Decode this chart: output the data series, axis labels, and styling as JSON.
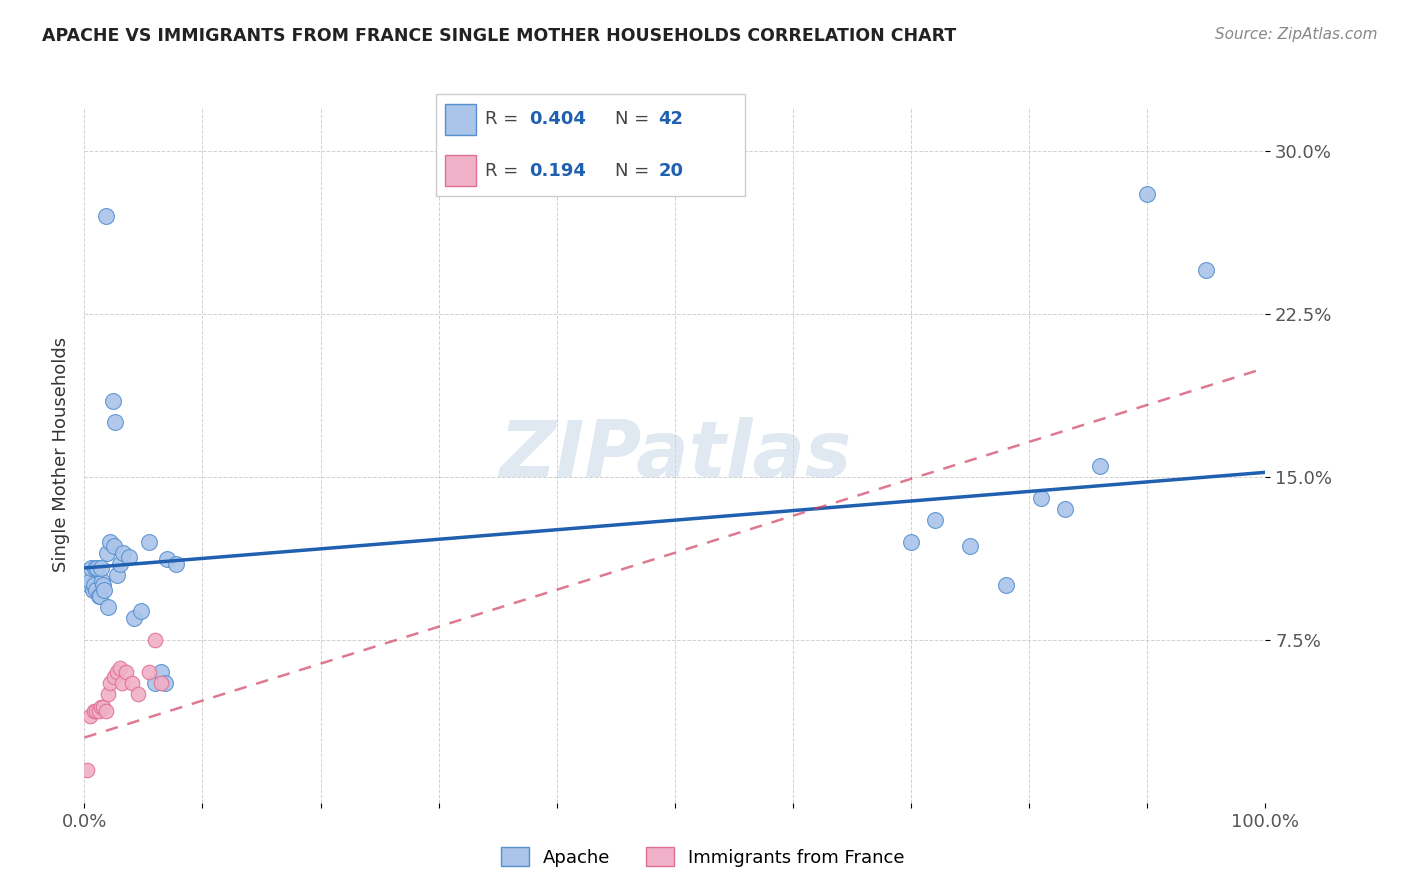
{
  "title": "APACHE VS IMMIGRANTS FROM FRANCE SINGLE MOTHER HOUSEHOLDS CORRELATION CHART",
  "source": "Source: ZipAtlas.com",
  "ylabel": "Single Mother Households",
  "xlim": [
    0,
    1.0
  ],
  "ylim": [
    0,
    0.32
  ],
  "apache_R": 0.404,
  "apache_N": 42,
  "france_R": 0.194,
  "france_N": 20,
  "apache_color": "#aac4ea",
  "apache_edge_color": "#5590d0",
  "apache_line_color": "#2060b0",
  "france_color": "#f0b0c8",
  "france_edge_color": "#e07090",
  "france_line_color": "#d04060",
  "watermark": "ZIPatlas",
  "apache_line_x0": 0.0,
  "apache_line_y0": 0.108,
  "apache_line_x1": 1.0,
  "apache_line_y1": 0.152,
  "france_line_x0": 0.0,
  "france_line_y0": 0.03,
  "france_line_x1": 1.0,
  "france_line_y1": 0.2,
  "apache_x": [
    0.018,
    0.004,
    0.005,
    0.007,
    0.008,
    0.01,
    0.012,
    0.013,
    0.015,
    0.016,
    0.017,
    0.019,
    0.022,
    0.025,
    0.028,
    0.03,
    0.033,
    0.038,
    0.042,
    0.048,
    0.055,
    0.06,
    0.065,
    0.068,
    0.07,
    0.078,
    0.006,
    0.009,
    0.011,
    0.014,
    0.02,
    0.024,
    0.026,
    0.7,
    0.72,
    0.75,
    0.78,
    0.81,
    0.83,
    0.86,
    0.9,
    0.95
  ],
  "apache_y": [
    0.27,
    0.1,
    0.102,
    0.098,
    0.1,
    0.098,
    0.095,
    0.095,
    0.102,
    0.1,
    0.098,
    0.115,
    0.12,
    0.118,
    0.105,
    0.11,
    0.115,
    0.113,
    0.085,
    0.088,
    0.12,
    0.055,
    0.06,
    0.055,
    0.112,
    0.11,
    0.108,
    0.108,
    0.108,
    0.108,
    0.09,
    0.185,
    0.175,
    0.12,
    0.13,
    0.118,
    0.1,
    0.14,
    0.135,
    0.155,
    0.28,
    0.245
  ],
  "france_x": [
    0.005,
    0.008,
    0.01,
    0.012,
    0.014,
    0.016,
    0.018,
    0.02,
    0.022,
    0.025,
    0.028,
    0.03,
    0.032,
    0.035,
    0.04,
    0.045,
    0.055,
    0.06,
    0.065,
    0.002
  ],
  "france_y": [
    0.04,
    0.042,
    0.042,
    0.042,
    0.044,
    0.044,
    0.042,
    0.05,
    0.055,
    0.058,
    0.06,
    0.062,
    0.055,
    0.06,
    0.055,
    0.05,
    0.06,
    0.075,
    0.055,
    0.015
  ]
}
